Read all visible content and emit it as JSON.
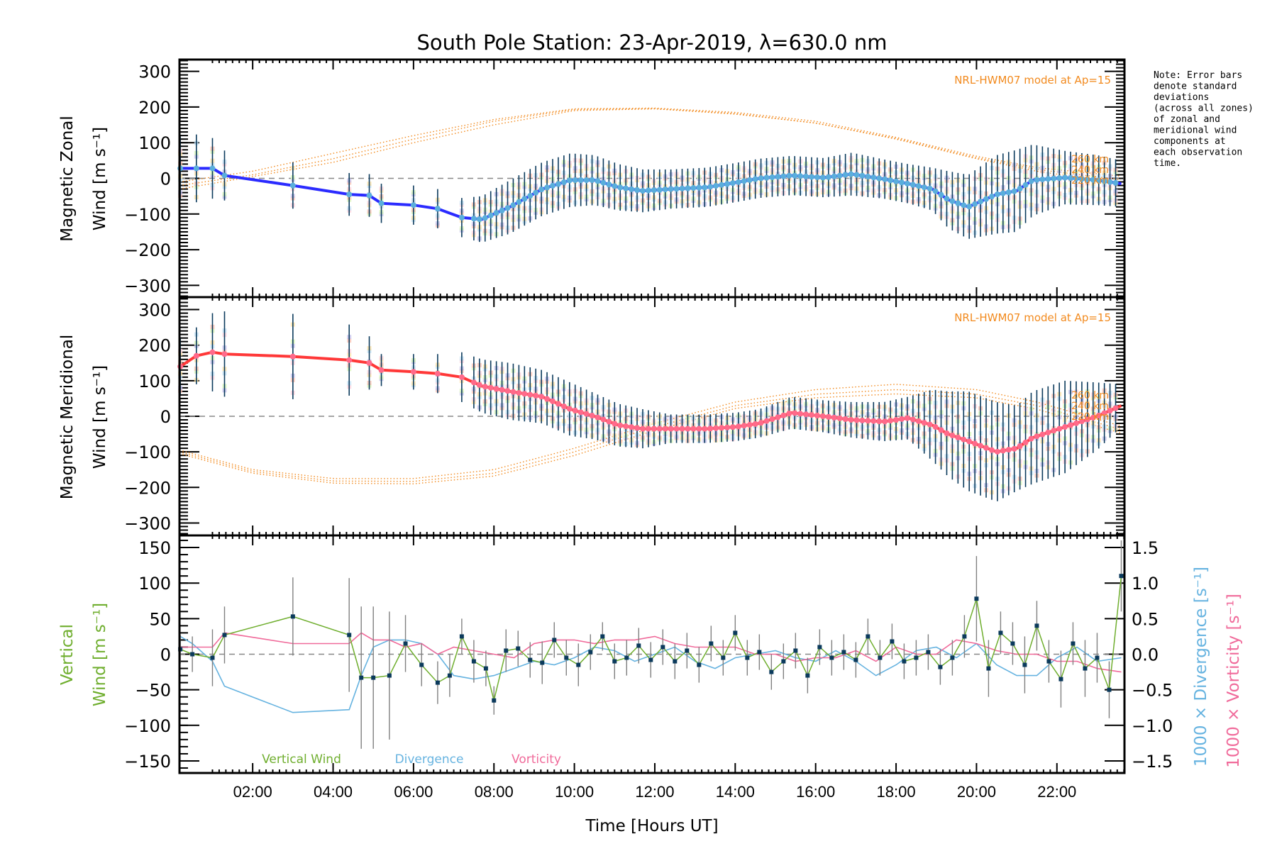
{
  "title": "South Pole Station: 23-Apr-2019, λ=630.0 nm",
  "note_lines": [
    "Note: Error bars",
    "denote standard",
    "deviations",
    "(across all zones)",
    "of zonal and",
    "meridional wind",
    "components at",
    "each observation",
    "time."
  ],
  "colors": {
    "zonal_line": "#2b2bff",
    "zonal_points": "#5aaedc",
    "meridional_line": "#ff3838",
    "meridional_points": "#ff6a8a",
    "error_bar": "#0b3a5c",
    "model": "#f28a1e",
    "vertical": "#6fae2e",
    "divergence": "#66b3e0",
    "vorticity": "#f06a9a",
    "zero_line": "#888888",
    "vertical_err": "#808080",
    "vertical_marker": "#0b3a5c"
  },
  "chart_data": [
    {
      "type": "line",
      "panel": "zonal",
      "title": "South Pole Station: 23-Apr-2019, λ=630.0 nm",
      "ylabel_line1": "Magnetic Zonal",
      "ylabel_line2": "Wind [m s⁻¹]",
      "xlim": [
        0.18,
        23.68
      ],
      "ylim": [
        -333,
        333
      ],
      "yticks": [
        300,
        200,
        100,
        0,
        -100,
        -200,
        -300
      ],
      "ytick_labels": [
        "300",
        "200",
        "100",
        "0",
        "−100",
        "−200",
        "−300"
      ],
      "model_label": "NRL-HWM07 model at Ap=15",
      "series": [
        {
          "name": "Zonal wind",
          "x": [
            0.2,
            0.6,
            1.0,
            1.3,
            3.0,
            4.4,
            4.9,
            5.2,
            6.0,
            6.6,
            7.2,
            7.7,
            8.4,
            9.2,
            9.9,
            10.5,
            11.1,
            11.7,
            12.4,
            13.3,
            14.0,
            14.6,
            15.4,
            16.2,
            16.9,
            17.7,
            18.3,
            18.9,
            19.3,
            19.8,
            20.5,
            21.0,
            21.4,
            22.2,
            23.0,
            23.6
          ],
          "y": [
            28,
            28,
            28,
            8,
            -20,
            -45,
            -48,
            -70,
            -75,
            -85,
            -110,
            -115,
            -80,
            -30,
            -5,
            -5,
            -25,
            -35,
            -30,
            -25,
            -12,
            0,
            8,
            2,
            12,
            -2,
            -15,
            -30,
            -60,
            -80,
            -45,
            -35,
            -5,
            2,
            -5,
            -15
          ]
        },
        {
          "name": "Zonal error",
          "x": [
            0.2,
            0.6,
            1.0,
            1.3,
            3.0,
            4.4,
            4.9,
            5.2,
            6.0,
            6.6,
            7.2,
            7.7,
            8.4,
            9.2,
            9.9,
            10.5,
            11.1,
            11.7,
            12.4,
            13.3,
            14.0,
            14.6,
            15.4,
            16.2,
            16.9,
            17.7,
            18.3,
            18.9,
            19.3,
            19.8,
            20.5,
            21.0,
            21.4,
            22.2,
            23.0,
            23.6
          ],
          "y": [
            90,
            95,
            85,
            70,
            65,
            60,
            60,
            55,
            55,
            55,
            55,
            65,
            75,
            75,
            75,
            70,
            65,
            60,
            55,
            55,
            55,
            55,
            55,
            55,
            60,
            55,
            55,
            60,
            80,
            90,
            110,
            115,
            100,
            75,
            70,
            65
          ]
        }
      ],
      "model_curves": [
        {
          "name": "260 km",
          "x": [
            0.18,
            2,
            4,
            6,
            8,
            10,
            12,
            14,
            16,
            18,
            20,
            21.5,
            23.68
          ],
          "y": [
            -30,
            5,
            45,
            100,
            150,
            190,
            195,
            180,
            155,
            110,
            55,
            20,
            -15
          ]
        },
        {
          "name": "240 km",
          "x": [
            0.18,
            2,
            4,
            6,
            8,
            10,
            12,
            14,
            16,
            18,
            20,
            21.5,
            23.68
          ],
          "y": [
            -20,
            10,
            55,
            110,
            160,
            193,
            195,
            182,
            155,
            112,
            58,
            25,
            -5
          ]
        },
        {
          "name": "220 km",
          "x": [
            0.18,
            2,
            4,
            6,
            8,
            10,
            12,
            14,
            16,
            18,
            20,
            21.5,
            23.68
          ],
          "y": [
            -10,
            20,
            70,
            120,
            165,
            195,
            197,
            185,
            160,
            115,
            62,
            30,
            5
          ]
        }
      ]
    },
    {
      "type": "line",
      "panel": "meridional",
      "ylabel_line1": "Magnetic Meridional",
      "ylabel_line2": "Wind [m s⁻¹]",
      "xlim": [
        0.18,
        23.68
      ],
      "ylim": [
        -335,
        335
      ],
      "yticks": [
        300,
        200,
        100,
        0,
        -100,
        -200,
        -300
      ],
      "ytick_labels": [
        "300",
        "200",
        "100",
        "0",
        "−100",
        "−200",
        "−300"
      ],
      "model_label": "NRL-HWM07 model at Ap=15",
      "altitude_labels": [
        "260 km",
        "240 km",
        "220 km"
      ],
      "series": [
        {
          "name": "Meridional wind",
          "x": [
            0.2,
            0.6,
            1.0,
            1.3,
            3.0,
            4.4,
            4.9,
            5.2,
            6.0,
            6.6,
            7.2,
            7.7,
            8.4,
            9.2,
            9.9,
            10.5,
            11.1,
            11.7,
            12.4,
            13.3,
            14.0,
            14.6,
            15.4,
            16.2,
            16.9,
            17.7,
            18.3,
            18.9,
            19.3,
            19.8,
            20.5,
            21.0,
            21.4,
            22.2,
            23.0,
            23.6
          ],
          "y": [
            140,
            170,
            180,
            175,
            168,
            158,
            150,
            130,
            125,
            120,
            110,
            85,
            70,
            55,
            20,
            0,
            -25,
            -35,
            -35,
            -35,
            -30,
            -20,
            10,
            0,
            -10,
            -15,
            -5,
            -25,
            -50,
            -70,
            -100,
            -90,
            -60,
            -30,
            0,
            30
          ]
        },
        {
          "name": "Meridional error",
          "x": [
            0.2,
            0.6,
            1.0,
            1.3,
            3.0,
            4.4,
            4.9,
            5.2,
            6.0,
            6.6,
            7.2,
            7.7,
            8.4,
            9.2,
            9.9,
            10.5,
            11.1,
            11.7,
            12.4,
            13.3,
            14.0,
            14.6,
            15.4,
            16.2,
            16.9,
            17.7,
            18.3,
            18.9,
            19.3,
            19.8,
            20.5,
            21.0,
            21.4,
            22.2,
            23.0,
            23.6
          ],
          "y": [
            80,
            80,
            110,
            120,
            120,
            100,
            75,
            45,
            50,
            55,
            70,
            75,
            80,
            75,
            75,
            65,
            60,
            55,
            40,
            40,
            40,
            40,
            45,
            45,
            50,
            55,
            60,
            100,
            120,
            140,
            140,
            120,
            130,
            130,
            95,
            60
          ]
        }
      ],
      "model_curves": [
        {
          "name": "260 km",
          "x": [
            0.18,
            2,
            4,
            6,
            8,
            10,
            12,
            14,
            16,
            18,
            20,
            21.5,
            23.68
          ],
          "y": [
            -95,
            -150,
            -175,
            -175,
            -150,
            -90,
            -20,
            40,
            75,
            90,
            75,
            40,
            -30
          ]
        },
        {
          "name": "240 km",
          "x": [
            0.18,
            2,
            4,
            6,
            8,
            10,
            12,
            14,
            16,
            18,
            20,
            21.5,
            23.68
          ],
          "y": [
            -100,
            -155,
            -182,
            -183,
            -160,
            -100,
            -30,
            30,
            62,
            75,
            62,
            30,
            -40
          ]
        },
        {
          "name": "220 km",
          "x": [
            0.18,
            2,
            4,
            6,
            8,
            10,
            12,
            14,
            16,
            18,
            20,
            21.5,
            23.68
          ],
          "y": [
            -105,
            -160,
            -188,
            -190,
            -168,
            -110,
            -40,
            22,
            52,
            63,
            52,
            20,
            -50
          ]
        }
      ]
    },
    {
      "type": "line",
      "panel": "vertical",
      "xlabel": "Time [Hours UT]",
      "xlim": [
        0.18,
        23.68
      ],
      "xticks": [
        2,
        4,
        6,
        8,
        10,
        12,
        14,
        16,
        18,
        20,
        22
      ],
      "xtick_labels": [
        "02:00",
        "04:00",
        "06:00",
        "08:00",
        "10:00",
        "12:00",
        "14:00",
        "16:00",
        "18:00",
        "20:00",
        "22:00"
      ],
      "ylabel_line1": "Vertical",
      "ylabel_line2": "Wind [m s⁻¹]",
      "ylim": [
        -167,
        167
      ],
      "yticks": [
        150,
        100,
        50,
        0,
        -50,
        -100,
        -150
      ],
      "ytick_labels": [
        "150",
        "100",
        "50",
        "0",
        "−50",
        "−100",
        "−150"
      ],
      "y2label_div": "1000 × Divergence [s⁻¹]",
      "y2label_vort": "1000 × Vorticity [s⁻¹]",
      "y2lim": [
        -1.67,
        1.67
      ],
      "y2ticks": [
        1.5,
        1.0,
        0.5,
        0.0,
        -0.5,
        -1.0,
        -1.5
      ],
      "y2tick_labels": [
        "1.5",
        "1.0",
        "0.5",
        "0.0",
        "−0.5",
        "−1.0",
        "−1.5"
      ],
      "legend": [
        "Vertical Wind",
        "Divergence",
        "Vorticity"
      ],
      "legend_position": "bottom-left",
      "series": [
        {
          "name": "Vertical Wind",
          "axis": "left",
          "x": [
            0.2,
            0.5,
            1.0,
            1.3,
            3.0,
            4.4,
            4.7,
            5.0,
            5.4,
            5.8,
            6.2,
            6.6,
            6.9,
            7.2,
            7.5,
            7.8,
            8.0,
            8.3,
            8.6,
            8.9,
            9.2,
            9.5,
            9.8,
            10.1,
            10.4,
            10.7,
            11.0,
            11.3,
            11.6,
            11.9,
            12.2,
            12.5,
            12.8,
            13.1,
            13.4,
            13.7,
            14.0,
            14.3,
            14.6,
            14.9,
            15.2,
            15.5,
            15.8,
            16.1,
            16.4,
            16.7,
            17.0,
            17.3,
            17.6,
            17.9,
            18.2,
            18.5,
            18.8,
            19.1,
            19.4,
            19.7,
            20.0,
            20.3,
            20.6,
            20.9,
            21.2,
            21.5,
            21.8,
            22.1,
            22.4,
            22.7,
            23.0,
            23.3,
            23.6
          ],
          "y": [
            7,
            0,
            -5,
            27,
            53,
            27,
            -33,
            -33,
            -30,
            15,
            -15,
            -40,
            -30,
            25,
            -10,
            -20,
            -65,
            5,
            8,
            -8,
            -12,
            20,
            -5,
            -15,
            3,
            25,
            -10,
            -5,
            12,
            -8,
            10,
            -10,
            5,
            -15,
            15,
            -5,
            30,
            -5,
            3,
            -25,
            -10,
            5,
            -30,
            10,
            -5,
            3,
            -8,
            25,
            -5,
            18,
            -10,
            -5,
            3,
            -18,
            -5,
            25,
            78,
            -20,
            30,
            15,
            -15,
            40,
            -10,
            -35,
            15,
            -20,
            -5,
            -50,
            110
          ],
          "err": [
            20,
            25,
            40,
            40,
            55,
            80,
            100,
            100,
            90,
            40,
            30,
            30,
            30,
            25,
            30,
            25,
            20,
            30,
            25,
            25,
            30,
            25,
            25,
            30,
            25,
            20,
            25,
            25,
            25,
            25,
            25,
            25,
            25,
            25,
            25,
            25,
            25,
            25,
            25,
            25,
            25,
            25,
            25,
            25,
            25,
            25,
            25,
            25,
            25,
            25,
            25,
            25,
            25,
            25,
            25,
            30,
            60,
            40,
            30,
            30,
            40,
            35,
            30,
            40,
            30,
            40,
            35,
            40,
            50
          ]
        },
        {
          "name": "Divergence",
          "axis": "right",
          "x": [
            0.2,
            0.5,
            1.0,
            1.3,
            3.0,
            4.4,
            4.7,
            5.0,
            5.4,
            5.8,
            6.2,
            6.6,
            7.0,
            7.5,
            8.0,
            8.5,
            9.0,
            9.5,
            10.0,
            10.5,
            11.0,
            11.5,
            12.0,
            12.5,
            13.0,
            13.5,
            14.0,
            14.5,
            15.0,
            15.5,
            16.0,
            16.5,
            17.0,
            17.5,
            18.0,
            18.5,
            19.0,
            19.5,
            20.0,
            20.5,
            21.0,
            21.5,
            22.0,
            22.5,
            23.0,
            23.6
          ],
          "y": [
            0.25,
            0.15,
            -0.1,
            -0.45,
            -0.82,
            -0.78,
            -0.3,
            0.1,
            0.2,
            0.2,
            0.15,
            0.0,
            -0.3,
            -0.35,
            -0.3,
            -0.2,
            -0.1,
            -0.15,
            -0.05,
            0.1,
            0.05,
            -0.1,
            0.0,
            0.1,
            -0.1,
            -0.2,
            -0.05,
            0.0,
            0.05,
            -0.05,
            -0.1,
            0.05,
            -0.1,
            -0.3,
            -0.15,
            0.05,
            0.1,
            -0.05,
            0.15,
            -0.15,
            -0.3,
            -0.3,
            -0.05,
            0.1,
            -0.1,
            -0.05
          ]
        },
        {
          "name": "Vorticity",
          "axis": "right",
          "x": [
            0.2,
            0.5,
            1.0,
            1.3,
            3.0,
            4.4,
            4.7,
            5.0,
            5.4,
            5.8,
            6.2,
            6.6,
            7.0,
            7.5,
            8.0,
            8.5,
            9.0,
            9.5,
            10.0,
            10.5,
            11.0,
            11.5,
            12.0,
            12.5,
            13.0,
            13.5,
            14.0,
            14.5,
            15.0,
            15.5,
            16.0,
            16.5,
            17.0,
            17.5,
            18.0,
            18.5,
            19.0,
            19.5,
            20.0,
            20.5,
            21.0,
            21.5,
            22.0,
            22.5,
            23.0,
            23.6
          ],
          "y": [
            0.1,
            0.1,
            0.1,
            0.3,
            0.15,
            0.15,
            0.3,
            0.2,
            0.2,
            0.1,
            0.15,
            0.0,
            0.1,
            0.05,
            0.0,
            -0.05,
            0.15,
            0.2,
            0.2,
            0.15,
            0.2,
            0.2,
            0.25,
            0.15,
            0.1,
            0.1,
            0.1,
            0.0,
            0.0,
            -0.1,
            -0.05,
            -0.05,
            0.05,
            -0.1,
            0.1,
            0.0,
            0.0,
            0.2,
            0.15,
            0.05,
            0.0,
            0.0,
            -0.1,
            -0.1,
            -0.2,
            -0.25
          ]
        }
      ]
    }
  ]
}
